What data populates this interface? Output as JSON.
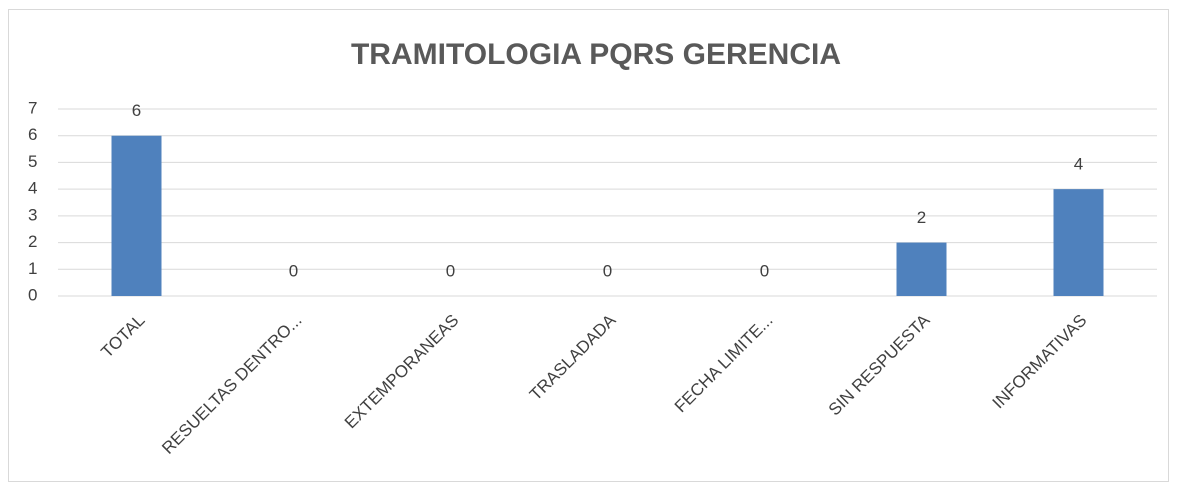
{
  "chart_data": {
    "type": "bar",
    "title": "TRAMITOLOGIA PQRS GERENCIA",
    "categories": [
      "TOTAL",
      "RESUELTAS DENTRO...",
      "EXTEMPORANEAS",
      "TRASLADADA",
      "FECHA LIMITE...",
      "SIN RESPUESTA",
      "INFORMATIVAS"
    ],
    "values": [
      6,
      0,
      0,
      0,
      0,
      2,
      4
    ],
    "color": "#4f81bd",
    "ylim": [
      0,
      7
    ],
    "yticks": [
      0,
      1,
      2,
      3,
      4,
      5,
      6,
      7
    ],
    "grid": true
  }
}
